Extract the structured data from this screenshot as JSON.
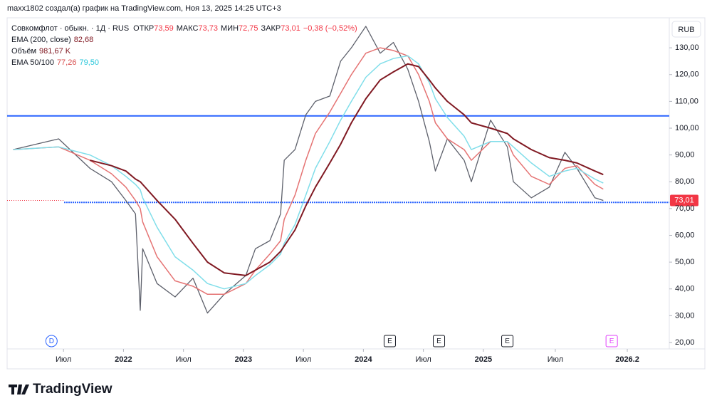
{
  "header": {
    "caption": "maxx1802 создал(а) график на TradingView.com, Ноя 13, 2025 14:25 UTC+3"
  },
  "brand": "TradingView",
  "currency": "RUB",
  "legend": {
    "symbol": "Совкомфлот · обыкн. · 1Д · RUS",
    "ohlc": [
      {
        "name": "ОТКР",
        "value": "73,59"
      },
      {
        "name": "МАКС",
        "value": "73,73"
      },
      {
        "name": "МИН",
        "value": "72,75"
      },
      {
        "name": "ЗАКР",
        "value": "73,01"
      }
    ],
    "change": "−0,38 (−0,52%)",
    "ema200": {
      "name": "EMA (200, close)",
      "value": "82,68"
    },
    "volume": {
      "name": "Объём",
      "value": "981,67 K"
    },
    "ema50_100": {
      "name": "EMA 50/100",
      "values": [
        "77,26",
        "79,50"
      ]
    }
  },
  "chart_data": {
    "type": "line",
    "x": [
      2021.08,
      2021.46,
      2021.72,
      2021.9,
      2022.02,
      2022.1,
      2022.14,
      2022.16,
      2022.28,
      2022.43,
      2022.58,
      2022.7,
      2022.84,
      2023.02,
      2023.1,
      2023.22,
      2023.31,
      2023.34,
      2023.43,
      2023.52,
      2023.6,
      2023.72,
      2023.81,
      2023.9,
      2024.02,
      2024.14,
      2024.25,
      2024.37,
      2024.46,
      2024.55,
      2024.6,
      2024.7,
      2024.84,
      2024.9,
      2025.06,
      2025.2,
      2025.25,
      2025.4,
      2025.55,
      2025.68,
      2025.78,
      2025.93,
      2026.0
    ],
    "series": [
      {
        "name": "Close",
        "color": "#5d606b",
        "values": [
          92,
          96,
          85,
          80,
          73,
          68,
          32,
          55,
          42,
          37,
          44,
          31,
          38,
          45,
          55,
          58,
          68,
          88,
          92,
          105,
          110,
          112,
          125,
          130,
          138,
          128,
          132,
          122,
          110,
          95,
          84,
          96,
          88,
          80,
          103,
          93,
          80,
          74,
          78,
          91,
          85,
          74,
          73.01
        ]
      },
      {
        "name": "EMA 50",
        "color": "#e57373",
        "values": [
          92,
          93,
          88,
          83,
          78,
          73,
          70,
          65,
          52,
          43,
          41,
          38,
          38,
          42,
          47,
          53,
          58,
          66,
          75,
          88,
          98,
          106,
          113,
          120,
          128,
          130,
          129,
          127,
          120,
          110,
          102,
          96,
          92,
          88,
          95,
          95,
          90,
          82,
          79,
          85,
          86,
          79,
          77.26
        ]
      },
      {
        "name": "EMA 100",
        "color": "#80deea",
        "values": [
          92,
          93,
          90,
          86,
          82,
          79,
          77,
          74,
          63,
          52,
          47,
          42,
          40,
          42,
          45,
          49,
          53,
          57,
          64,
          75,
          85,
          95,
          103,
          110,
          119,
          124,
          126,
          127,
          124,
          117,
          111,
          104,
          97,
          92,
          95,
          95,
          93,
          87,
          82,
          84,
          85,
          81,
          79.5
        ]
      },
      {
        "name": "EMA 200",
        "color": "#801922",
        "values": [
          null,
          null,
          88,
          86,
          84,
          81,
          80,
          79,
          73,
          66,
          57,
          50,
          46,
          45,
          47,
          50,
          54,
          56,
          62,
          71,
          78,
          87,
          94,
          102,
          111,
          118,
          121,
          124,
          123,
          118,
          115,
          110,
          105,
          102,
          100,
          98,
          96,
          92,
          89,
          88,
          87,
          84,
          82.68
        ]
      }
    ],
    "last_price": {
      "value": 73.01,
      "label": "73,01",
      "color": "#f23645"
    },
    "hlines": [
      {
        "value": 104.6,
        "color": "#2962ff",
        "dashed": false
      },
      {
        "value": 72.3,
        "color": "#2962ff",
        "dashed": true
      }
    ],
    "events": [
      {
        "x": 2021.4,
        "label": "D"
      },
      {
        "x": 2024.22,
        "label": "E"
      },
      {
        "x": 2024.63,
        "label": "E"
      },
      {
        "x": 2025.2,
        "label": "E"
      },
      {
        "x": 2026.07,
        "label": "E"
      }
    ],
    "xlim": [
      2021.03,
      2026.55
    ],
    "ylim": [
      17.6,
      141.2
    ],
    "xticks": [
      {
        "value": 2021.5,
        "label": "Июл"
      },
      2022,
      {
        "value": 2022.5,
        "label": "Июл"
      },
      2023,
      {
        "value": 2023.5,
        "label": "Июл"
      },
      2024,
      {
        "value": 2024.5,
        "label": "Июл"
      },
      2025,
      {
        "value": 2025.6,
        "label": "Июл"
      },
      2026.2
    ],
    "yticks": [
      {
        "value": 20,
        "label": "20,00"
      },
      {
        "value": 30,
        "label": "30,00"
      },
      {
        "value": 40,
        "label": "40,00"
      },
      {
        "value": 50,
        "label": "50,00"
      },
      {
        "value": 60,
        "label": "60,00"
      },
      {
        "value": 70,
        "label": "70,00"
      },
      {
        "value": 80,
        "label": "80,00"
      },
      {
        "value": 90,
        "label": "90,00"
      },
      {
        "value": 100,
        "label": "100,00"
      },
      {
        "value": 110,
        "label": "110,00"
      },
      {
        "value": 120,
        "label": "120,00"
      },
      {
        "value": 130,
        "label": "130,00"
      }
    ]
  }
}
